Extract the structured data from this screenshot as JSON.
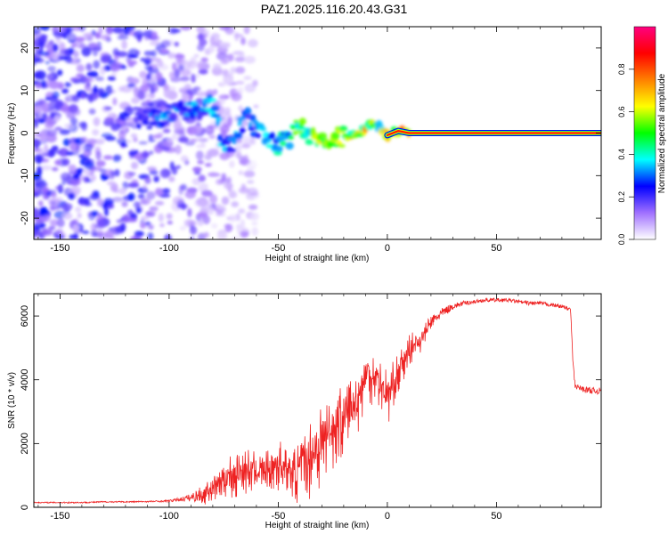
{
  "title": "PAZ1.2025.116.20.43.G31",
  "chart_data": [
    {
      "type": "heatmap",
      "name": "spectrogram",
      "xlabel": "Height of straight line (km)",
      "ylabel": "Frequency (Hz)",
      "xlim": [
        -162,
        98
      ],
      "ylim": [
        -25,
        25
      ],
      "xticks": [
        -150,
        -100,
        -50,
        0,
        50
      ],
      "xtick_labels": [
        "-150",
        "-100",
        "-50",
        "0",
        "50"
      ],
      "yticks": [
        -20,
        -10,
        0,
        10,
        20
      ],
      "ytick_labels": [
        "-20",
        "-10",
        "0",
        "10",
        "20"
      ],
      "ridge": [
        {
          "x": -115,
          "y": 3.0,
          "a": 0.2
        },
        {
          "x": -105,
          "y": 3.5,
          "a": 0.3
        },
        {
          "x": -95,
          "y": 5.0,
          "a": 0.3
        },
        {
          "x": -85,
          "y": 6.0,
          "a": 0.3
        },
        {
          "x": -80,
          "y": 7.0,
          "a": 0.35
        },
        {
          "x": -75,
          "y": -3.0,
          "a": 0.35
        },
        {
          "x": -70,
          "y": -2.0,
          "a": 0.3
        },
        {
          "x": -65,
          "y": 4.0,
          "a": 0.3
        },
        {
          "x": -60,
          "y": 1.0,
          "a": 0.3
        },
        {
          "x": -55,
          "y": -2.0,
          "a": 0.35
        },
        {
          "x": -50,
          "y": -3.0,
          "a": 0.4
        },
        {
          "x": -45,
          "y": -1.0,
          "a": 0.45
        },
        {
          "x": -40,
          "y": 2.0,
          "a": 0.5
        },
        {
          "x": -35,
          "y": -1.0,
          "a": 0.5
        },
        {
          "x": -30,
          "y": -2.0,
          "a": 0.55
        },
        {
          "x": -25,
          "y": -1.5,
          "a": 0.6
        },
        {
          "x": -20,
          "y": -1.0,
          "a": 0.6
        },
        {
          "x": -15,
          "y": -0.5,
          "a": 0.6
        },
        {
          "x": -10,
          "y": 1.0,
          "a": 0.65
        },
        {
          "x": -7,
          "y": 2.5,
          "a": 0.55
        },
        {
          "x": -4,
          "y": 1.5,
          "a": 0.55
        },
        {
          "x": 0,
          "y": -0.5,
          "a": 0.6
        },
        {
          "x": 5,
          "y": 0.5,
          "a": 0.7
        },
        {
          "x": 10,
          "y": 0.0,
          "a": 0.8
        },
        {
          "x": 20,
          "y": 0.0,
          "a": 0.85
        },
        {
          "x": 40,
          "y": 0.0,
          "a": 0.9
        },
        {
          "x": 60,
          "y": 0.0,
          "a": 0.9
        },
        {
          "x": 80,
          "y": 0.0,
          "a": 0.85
        },
        {
          "x": 90,
          "y": 0.0,
          "a": 0.75
        },
        {
          "x": 97,
          "y": 0.0,
          "a": 0.7
        }
      ],
      "noise_region": {
        "x_from": -162,
        "x_to": -75
      },
      "colorbar": {
        "label": "Normalized spectral amplitude",
        "range": [
          0,
          1
        ],
        "ticks": [
          0.0,
          0.2,
          0.4,
          0.6,
          0.8
        ],
        "tick_labels": [
          "0.0",
          "0.2",
          "0.4",
          "0.6",
          "0.8"
        ],
        "colormap_stops": [
          "#ffffff",
          "#a070ff",
          "#0000ff",
          "#00ffff",
          "#00ff00",
          "#ffff00",
          "#ff8000",
          "#ff0000",
          "#ff0080"
        ]
      }
    },
    {
      "type": "line",
      "name": "snr",
      "xlabel": "Height of straight line (km)",
      "ylabel": "SNR (10 * v/v)",
      "xlim": [
        -162,
        98
      ],
      "ylim": [
        0,
        6700
      ],
      "xticks": [
        -150,
        -100,
        -50,
        0,
        50
      ],
      "xtick_labels": [
        "-150",
        "-100",
        "-50",
        "0",
        "50"
      ],
      "yticks": [
        0,
        2000,
        4000,
        6000
      ],
      "ytick_labels": [
        "0",
        "2000",
        "4000",
        "6000"
      ],
      "color": "#ee2222",
      "series": [
        {
          "name": "SNR",
          "x": [
            -162,
            -150,
            -140,
            -130,
            -120,
            -110,
            -100,
            -95,
            -90,
            -85,
            -80,
            -75,
            -70,
            -65,
            -60,
            -55,
            -50,
            -45,
            -40,
            -35,
            -30,
            -25,
            -20,
            -15,
            -10,
            -5,
            0,
            5,
            10,
            15,
            20,
            25,
            30,
            35,
            40,
            45,
            50,
            55,
            60,
            65,
            70,
            75,
            80,
            84,
            85,
            86,
            90,
            95,
            98
          ],
          "y": [
            150,
            150,
            150,
            170,
            170,
            180,
            200,
            250,
            300,
            420,
            700,
            1000,
            1200,
            1250,
            1250,
            1300,
            1500,
            1200,
            1250,
            1800,
            2300,
            2600,
            3000,
            3300,
            4300,
            4200,
            3600,
            4300,
            5000,
            5300,
            5800,
            6100,
            6300,
            6400,
            6450,
            6500,
            6500,
            6500,
            6450,
            6400,
            6400,
            6350,
            6300,
            6200,
            4600,
            3800,
            3700,
            3650,
            3650
          ],
          "noise": [
            30,
            40,
            40,
            40,
            40,
            40,
            60,
            120,
            250,
            500,
            700,
            1000,
            1300,
            1200,
            900,
            900,
            1400,
            900,
            1700,
            2000,
            2200,
            1800,
            1800,
            1800,
            1500,
            1200,
            1400,
            1000,
            800,
            700,
            400,
            300,
            200,
            150,
            120,
            120,
            120,
            120,
            120,
            120,
            120,
            120,
            120,
            120,
            150,
            150,
            200,
            200,
            200
          ]
        }
      ]
    }
  ]
}
